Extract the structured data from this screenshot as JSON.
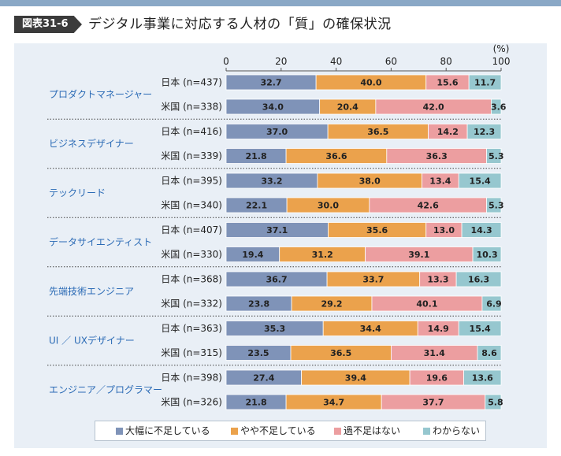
{
  "header": {
    "figure_label": "図表31-6",
    "title": "デジタル事業に対応する人材の「質」の確保状況"
  },
  "chart_data": {
    "type": "bar",
    "orientation": "horizontal",
    "stacked": true,
    "unit_label": "(%)",
    "xlim": [
      0,
      100
    ],
    "x_ticks": [
      0,
      20,
      40,
      60,
      80,
      100
    ],
    "legend": [
      "大幅に不足している",
      "やや不足している",
      "過不足はない",
      "わからない"
    ],
    "legend_position": "bottom",
    "colors": [
      "#7f93b8",
      "#eba24c",
      "#ec9ea0",
      "#96c7cf"
    ],
    "groups": [
      {
        "name": "プロダクトマネージャー",
        "rows": [
          {
            "label": "日本 (n=437)",
            "values": [
              32.7,
              40.0,
              15.6,
              11.7
            ]
          },
          {
            "label": "米国 (n=338)",
            "values": [
              34.0,
              20.4,
              42.0,
              3.6
            ]
          }
        ]
      },
      {
        "name": "ビジネスデザイナー",
        "rows": [
          {
            "label": "日本 (n=416)",
            "values": [
              37.0,
              36.5,
              14.2,
              12.3
            ]
          },
          {
            "label": "米国 (n=339)",
            "values": [
              21.8,
              36.6,
              36.3,
              5.3
            ]
          }
        ]
      },
      {
        "name": "テックリード",
        "rows": [
          {
            "label": "日本 (n=395)",
            "values": [
              33.2,
              38.0,
              13.4,
              15.4
            ]
          },
          {
            "label": "米国 (n=340)",
            "values": [
              22.1,
              30.0,
              42.6,
              5.3
            ]
          }
        ]
      },
      {
        "name": "データサイエンティスト",
        "rows": [
          {
            "label": "日本 (n=407)",
            "values": [
              37.1,
              35.6,
              13.0,
              14.3
            ]
          },
          {
            "label": "米国 (n=330)",
            "values": [
              19.4,
              31.2,
              39.1,
              10.3
            ]
          }
        ]
      },
      {
        "name": "先端技術エンジニア",
        "rows": [
          {
            "label": "日本 (n=368)",
            "values": [
              36.7,
              33.7,
              13.3,
              16.3
            ]
          },
          {
            "label": "米国 (n=332)",
            "values": [
              23.8,
              29.2,
              40.1,
              6.9
            ]
          }
        ]
      },
      {
        "name": "UI ／ UXデザイナー",
        "rows": [
          {
            "label": "日本 (n=363)",
            "values": [
              35.3,
              34.4,
              14.9,
              15.4
            ]
          },
          {
            "label": "米国 (n=315)",
            "values": [
              23.5,
              36.5,
              31.4,
              8.6
            ]
          }
        ]
      },
      {
        "name": "エンジニア／プログラマー",
        "rows": [
          {
            "label": "日本 (n=398)",
            "values": [
              27.4,
              39.4,
              19.6,
              13.6
            ]
          },
          {
            "label": "米国 (n=326)",
            "values": [
              21.8,
              34.7,
              37.7,
              5.8
            ]
          }
        ]
      }
    ]
  }
}
